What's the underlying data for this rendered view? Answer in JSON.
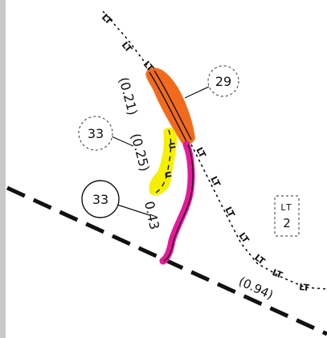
{
  "map": {
    "colors": {
      "orange_segment": "#f26b1d",
      "yellow_segment": "#f5f000",
      "magenta_segment": "#e6189a",
      "lines": "#111111",
      "background": "#ffffff",
      "left_border": "#c8c8c8"
    },
    "line_labels": [
      "LT",
      "LT",
      "LT",
      "LT",
      "LT",
      "LT",
      "LT",
      "LT",
      "LT",
      "LT"
    ],
    "segment_lengths": {
      "orange": "(0.21)",
      "yellow": "(0.25)",
      "magenta": "0.43",
      "right": "(0.94)"
    },
    "markers": {
      "dashed_circle_29": "29",
      "dashed_circle_33": "33",
      "solid_circle_33": "33"
    },
    "route_box": {
      "top": "LT",
      "bottom": "2"
    },
    "yellow_segment_labels": [
      "U",
      "U"
    ]
  }
}
